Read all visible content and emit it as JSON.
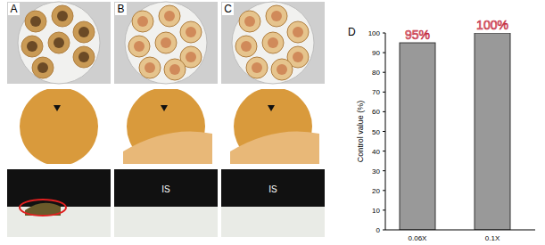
{
  "chart_data": {
    "type": "bar",
    "title": "D",
    "ylabel": "Control value (%)",
    "categories": [
      "0.06X",
      "0.1X"
    ],
    "values": [
      95,
      100
    ],
    "value_labels": [
      "95%",
      "100%"
    ],
    "color": "#999999",
    "ylim": [
      0,
      100
    ],
    "yticks": [
      0,
      10,
      20,
      30,
      40,
      50,
      60,
      70,
      80,
      90,
      100
    ],
    "data_labels": true,
    "grid": false
  },
  "panels": [
    {
      "label": "A"
    },
    {
      "label": "B",
      "text": "IS"
    },
    {
      "label": "C",
      "text": "IS"
    }
  ]
}
